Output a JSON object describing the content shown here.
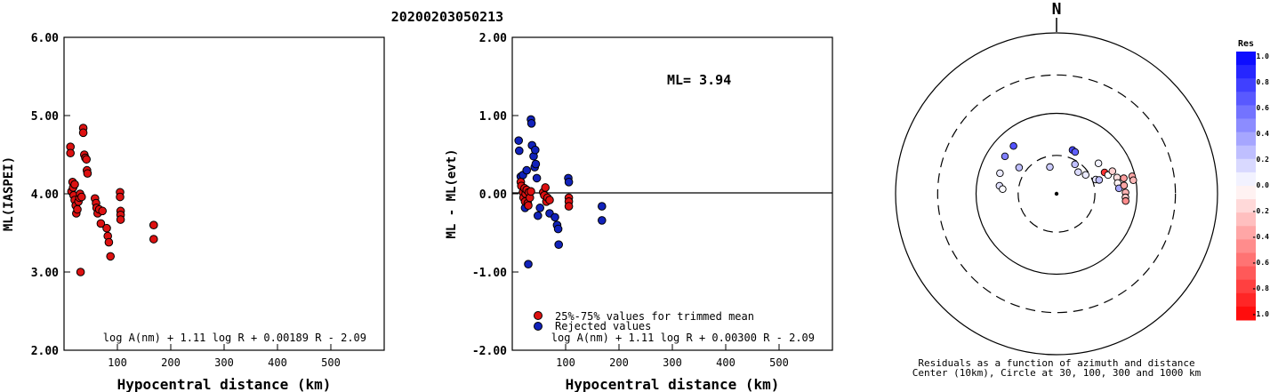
{
  "event_id": "20200203050213",
  "chart_data": [
    {
      "type": "scatter",
      "ylabel": "ML(IASPEI)",
      "xlabel": "Hypocentral distance (km)",
      "xlim": [
        0,
        600
      ],
      "ylim": [
        2.0,
        6.0
      ],
      "xticks": [
        "100",
        "200",
        "300",
        "400",
        "500"
      ],
      "yticks": [
        "2.00",
        "3.00",
        "4.00",
        "5.00",
        "6.00"
      ],
      "formula": "log A(nm) + 1.11 log R + 0.00189 R - 2.09",
      "points_color": "#dd1111",
      "points": [
        [
          12,
          4.6
        ],
        [
          12,
          4.52
        ],
        [
          14,
          4.03
        ],
        [
          16,
          4.15
        ],
        [
          17,
          4.08
        ],
        [
          18,
          3.98
        ],
        [
          20,
          4.12
        ],
        [
          20,
          3.92
        ],
        [
          22,
          3.85
        ],
        [
          23,
          3.75
        ],
        [
          25,
          3.8
        ],
        [
          27,
          3.9
        ],
        [
          29,
          3.95
        ],
        [
          30,
          4.0
        ],
        [
          31,
          3.0
        ],
        [
          33,
          3.96
        ],
        [
          36,
          4.84
        ],
        [
          36,
          4.78
        ],
        [
          38,
          4.5
        ],
        [
          40,
          4.46
        ],
        [
          42,
          4.44
        ],
        [
          43,
          4.3
        ],
        [
          44,
          4.26
        ],
        [
          58,
          3.94
        ],
        [
          60,
          3.88
        ],
        [
          61,
          3.82
        ],
        [
          63,
          3.75
        ],
        [
          66,
          3.8
        ],
        [
          69,
          3.62
        ],
        [
          72,
          3.78
        ],
        [
          80,
          3.56
        ],
        [
          82,
          3.46
        ],
        [
          84,
          3.38
        ],
        [
          87,
          3.2
        ],
        [
          105,
          4.02
        ],
        [
          105,
          3.96
        ],
        [
          106,
          3.78
        ],
        [
          106,
          3.73
        ],
        [
          106,
          3.67
        ],
        [
          168,
          3.6
        ],
        [
          168,
          3.42
        ]
      ]
    },
    {
      "type": "scatter",
      "ylabel": "ML - ML(evt)",
      "xlabel": "Hypocentral distance (km)",
      "xlim": [
        0,
        600
      ],
      "ylim": [
        -2.0,
        2.0
      ],
      "xticks": [
        "100",
        "200",
        "300",
        "400",
        "500"
      ],
      "yticks": [
        "-2.00",
        "-1.00",
        "0.00",
        "1.00",
        "2.00"
      ],
      "annotation": "ML= 3.94",
      "formula": "log A(nm) + 1.11 log R + 0.00300 R - 2.09",
      "legend": [
        "25%-75% values for trimmed mean",
        "Rejected values"
      ],
      "colors": {
        "used": "#dd1111",
        "rejected": "#1122bb"
      },
      "used_points": [
        [
          16,
          0.15
        ],
        [
          17,
          0.1
        ],
        [
          20,
          0.02
        ],
        [
          21,
          -0.05
        ],
        [
          23,
          0.07
        ],
        [
          24,
          -0.1
        ],
        [
          25,
          0.0
        ],
        [
          27,
          0.05
        ],
        [
          29,
          -0.12
        ],
        [
          30,
          -0.15
        ],
        [
          31,
          0.02
        ],
        [
          33,
          -0.05
        ],
        [
          35,
          0.03
        ],
        [
          58,
          0.02
        ],
        [
          60,
          -0.02
        ],
        [
          62,
          0.08
        ],
        [
          64,
          -0.1
        ],
        [
          66,
          -0.05
        ],
        [
          70,
          -0.08
        ],
        [
          106,
          -0.05
        ],
        [
          106,
          -0.1
        ],
        [
          106,
          -0.16
        ]
      ],
      "rejected_points": [
        [
          12,
          0.68
        ],
        [
          13,
          0.55
        ],
        [
          16,
          0.22
        ],
        [
          20,
          0.24
        ],
        [
          22,
          -0.03
        ],
        [
          24,
          -0.18
        ],
        [
          27,
          0.3
        ],
        [
          30,
          -0.9
        ],
        [
          35,
          0.95
        ],
        [
          36,
          0.9
        ],
        [
          37,
          0.62
        ],
        [
          40,
          0.48
        ],
        [
          42,
          0.34
        ],
        [
          43,
          0.56
        ],
        [
          44,
          0.38
        ],
        [
          46,
          0.2
        ],
        [
          48,
          -0.28
        ],
        [
          52,
          -0.18
        ],
        [
          70,
          -0.25
        ],
        [
          80,
          -0.3
        ],
        [
          84,
          -0.4
        ],
        [
          86,
          -0.45
        ],
        [
          87,
          -0.65
        ],
        [
          105,
          0.2
        ],
        [
          106,
          0.15
        ],
        [
          168,
          -0.16
        ],
        [
          168,
          -0.34
        ]
      ]
    },
    {
      "type": "polar_scatter",
      "north_label": "N",
      "caption": [
        "Residuals as a function of azimuth and distance",
        "Center (10km), Circle at 30, 100, 300 and 1000 km"
      ],
      "rings": [
        {
          "km": 30,
          "style": "dashed"
        },
        {
          "km": 100,
          "style": "solid"
        },
        {
          "km": 300,
          "style": "dashed"
        },
        {
          "km": 1000,
          "style": "solid"
        }
      ],
      "colorbar": {
        "title": "Res",
        "labels": [
          "1.0",
          "0.8",
          "0.6",
          "0.4",
          "0.2",
          "0.0",
          "-0.2",
          "-0.4",
          "-0.6",
          "-0.8",
          "-1.0"
        ]
      },
      "stations": [
        {
          "az": 318,
          "dist_km": 63,
          "res": 0.68
        },
        {
          "az": 306,
          "dist_km": 62,
          "res": 0.5
        },
        {
          "az": 290,
          "dist_km": 56,
          "res": 0.08
        },
        {
          "az": 278,
          "dist_km": 52,
          "res": 0.12
        },
        {
          "az": 275,
          "dist_km": 47,
          "res": 0.02
        },
        {
          "az": 305,
          "dist_km": 37,
          "res": 0.25
        },
        {
          "az": 346,
          "dist_km": 22,
          "res": 0.2
        },
        {
          "az": 20,
          "dist_km": 38,
          "res": 0.72
        },
        {
          "az": 24,
          "dist_km": 37,
          "res": 0.62
        },
        {
          "az": 32,
          "dist_km": 27,
          "res": 0.25
        },
        {
          "az": 45,
          "dist_km": 24,
          "res": 0.14
        },
        {
          "az": 57,
          "dist_km": 27,
          "res": 0.08
        },
        {
          "az": 70,
          "dist_km": 33,
          "res": 0.1
        },
        {
          "az": 72,
          "dist_km": 36,
          "res": 0.25
        },
        {
          "az": 54,
          "dist_km": 44,
          "res": 0.05
        },
        {
          "az": 66,
          "dist_km": 45,
          "res": -0.8
        },
        {
          "az": 70,
          "dist_km": 48,
          "res": 0.0
        },
        {
          "az": 68,
          "dist_km": 56,
          "res": -0.18
        },
        {
          "az": 75,
          "dist_km": 60,
          "res": -0.12
        },
        {
          "az": 80,
          "dist_km": 59,
          "res": -0.05
        },
        {
          "az": 85,
          "dist_km": 60,
          "res": 0.35
        },
        {
          "az": 83,
          "dist_km": 70,
          "res": -0.35
        },
        {
          "az": 77,
          "dist_km": 72,
          "res": -0.38
        },
        {
          "az": 89,
          "dist_km": 72,
          "res": -0.3
        },
        {
          "az": 93,
          "dist_km": 72,
          "res": -0.22
        },
        {
          "az": 96,
          "dist_km": 73,
          "res": -0.45
        },
        {
          "az": 77,
          "dist_km": 92,
          "res": -0.34
        },
        {
          "az": 80,
          "dist_km": 93,
          "res": -0.28
        }
      ]
    }
  ]
}
